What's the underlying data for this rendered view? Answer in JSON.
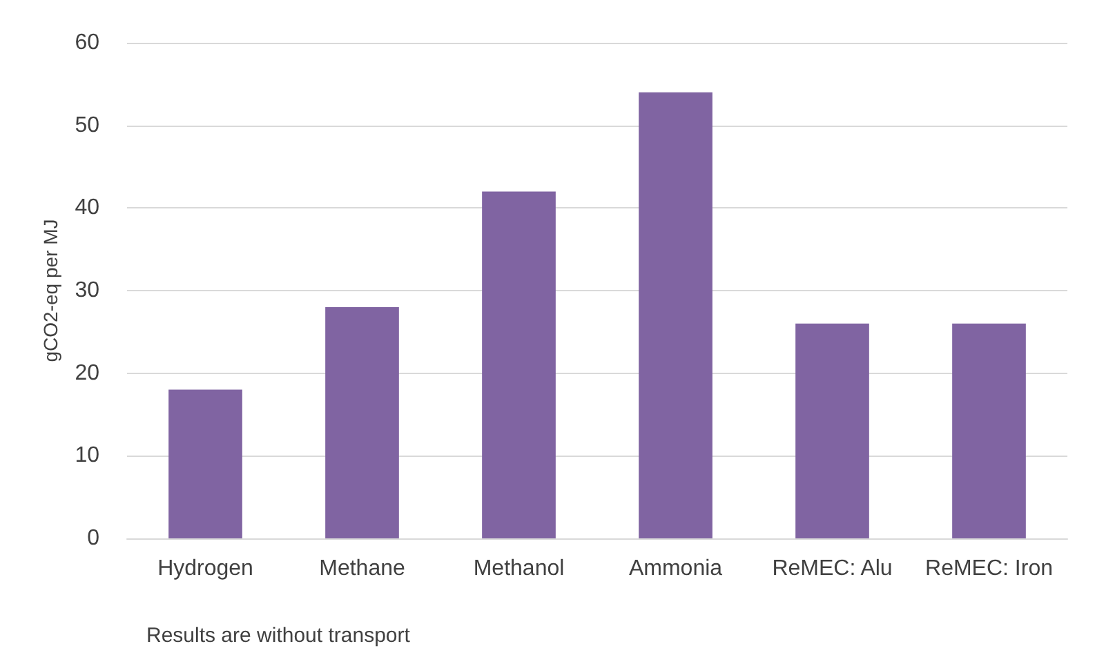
{
  "chart_data": {
    "type": "bar",
    "ylabel": "gCO2-eq per MJ",
    "categories": [
      "Hydrogen",
      "Methane",
      "Methanol",
      "Ammonia",
      "ReMEC: Alu",
      "ReMEC: Iron"
    ],
    "values": [
      18,
      28,
      42,
      54,
      26,
      26
    ],
    "color": "#8064a2",
    "ylim": [
      0,
      60
    ],
    "yticks": [
      0,
      10,
      20,
      30,
      40,
      50,
      60
    ],
    "grid": "y",
    "annotations": [
      "Results are without transport"
    ]
  }
}
